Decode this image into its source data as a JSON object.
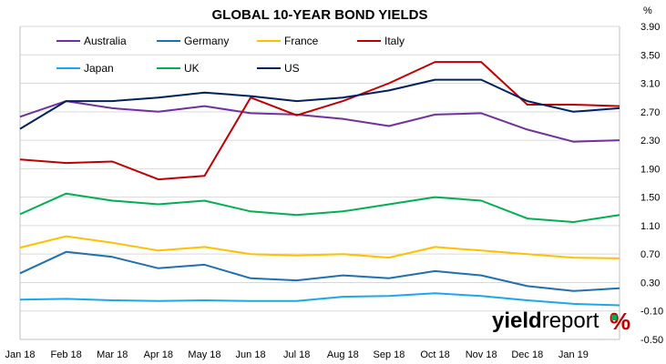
{
  "chart_data": {
    "type": "line",
    "title": "GLOBAL 10-YEAR BOND YIELDS",
    "ylabel": "%",
    "ylim": [
      -0.5,
      3.9
    ],
    "yticks": [
      "3.90",
      "3.50",
      "3.10",
      "2.70",
      "2.30",
      "1.90",
      "1.50",
      "1.10",
      "0.70",
      "0.30",
      "-0.10",
      "-0.50"
    ],
    "xlabels": [
      "Jan 18",
      "Feb 18",
      "Mar 18",
      "Apr 18",
      "May 18",
      "Jun 18",
      "Jul 18",
      "Aug 18",
      "Sep 18",
      "Oct 18",
      "Nov 18",
      "Dec 18",
      "Jan 19"
    ],
    "x": [
      "Jan 18",
      "Feb 18",
      "Mar 18",
      "Apr 18",
      "May 18",
      "Jun 18",
      "Jul 18",
      "Aug 18",
      "Sep 18",
      "Oct 18",
      "Nov 18",
      "Dec 18",
      "Jan 19",
      "Jan 19 end"
    ],
    "grid": true,
    "legend_position": "top-left",
    "series": [
      {
        "name": "Australia",
        "color": "#7030a0",
        "values": [
          2.63,
          2.85,
          2.75,
          2.7,
          2.78,
          2.68,
          2.66,
          2.6,
          2.5,
          2.66,
          2.68,
          2.45,
          2.28,
          2.3
        ]
      },
      {
        "name": "Germany",
        "color": "#1f6fb4",
        "values": [
          0.43,
          0.73,
          0.66,
          0.5,
          0.55,
          0.36,
          0.33,
          0.4,
          0.36,
          0.46,
          0.4,
          0.25,
          0.18,
          0.22
        ]
      },
      {
        "name": "France",
        "color": "#ffc000",
        "values": [
          0.79,
          0.95,
          0.86,
          0.75,
          0.8,
          0.7,
          0.68,
          0.7,
          0.65,
          0.8,
          0.75,
          0.7,
          0.65,
          0.64
        ]
      },
      {
        "name": "Italy",
        "color": "#c00000",
        "values": [
          2.03,
          1.98,
          2.0,
          1.75,
          1.8,
          2.9,
          2.65,
          2.85,
          3.1,
          3.4,
          3.4,
          2.8,
          2.8,
          2.78
        ]
      },
      {
        "name": "Japan",
        "color": "#1ca7ec",
        "values": [
          0.06,
          0.07,
          0.05,
          0.04,
          0.05,
          0.04,
          0.04,
          0.1,
          0.11,
          0.15,
          0.11,
          0.05,
          0.0,
          -0.02
        ]
      },
      {
        "name": "UK",
        "color": "#00b050",
        "values": [
          1.26,
          1.55,
          1.45,
          1.4,
          1.45,
          1.3,
          1.25,
          1.3,
          1.4,
          1.5,
          1.45,
          1.2,
          1.15,
          1.25
        ]
      },
      {
        "name": "US",
        "color": "#002060",
        "values": [
          2.46,
          2.85,
          2.85,
          2.9,
          2.97,
          2.92,
          2.85,
          2.9,
          3.0,
          3.15,
          3.15,
          2.85,
          2.7,
          2.75
        ]
      }
    ]
  },
  "logo": {
    "part1": "yield",
    "part2": "report",
    "pct": "%"
  }
}
